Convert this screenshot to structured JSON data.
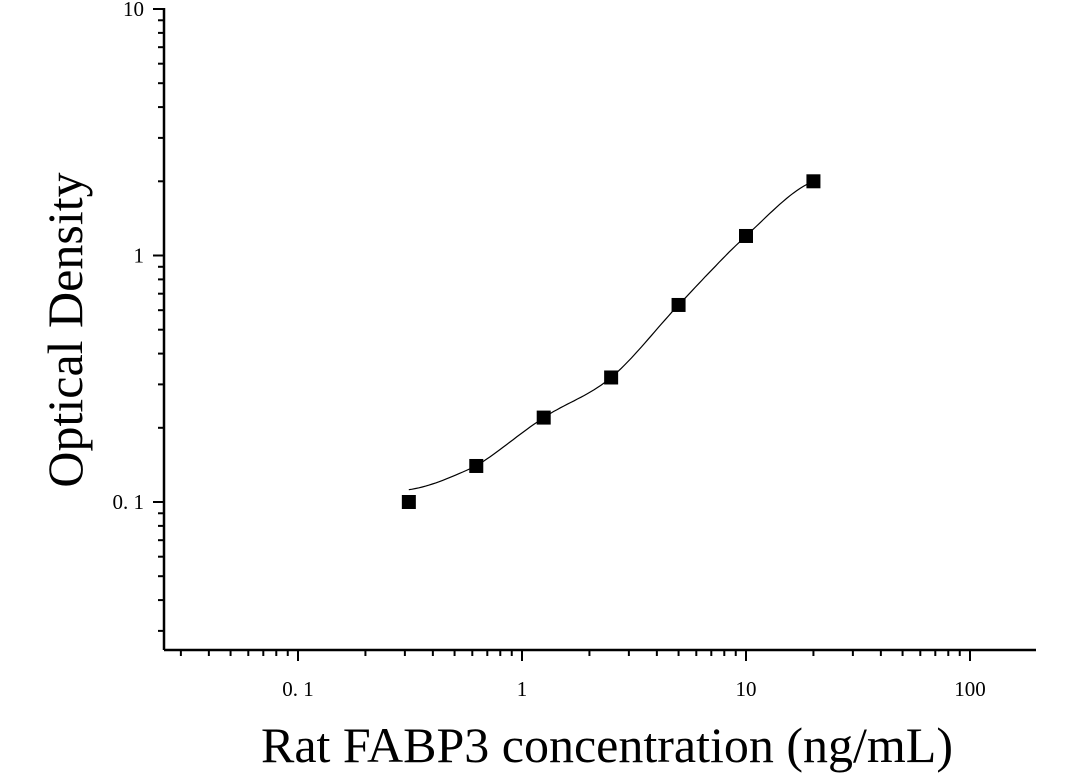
{
  "chart_data": {
    "type": "scatter",
    "title": "",
    "xlabel": "Rat FABP3 concentration (ng/mL)",
    "ylabel": "Optical Density",
    "xscale": "log",
    "yscale": "log",
    "xlim": [
      0.025,
      200
    ],
    "ylim": [
      0.025,
      10
    ],
    "x_tick_labels": [
      {
        "value": 0.1,
        "label": "0. 1"
      },
      {
        "value": 1,
        "label": "1"
      },
      {
        "value": 10,
        "label": "10"
      },
      {
        "value": 100,
        "label": "100"
      }
    ],
    "y_tick_labels": [
      {
        "value": 0.1,
        "label": "0. 1"
      },
      {
        "value": 1,
        "label": "1"
      },
      {
        "value": 10,
        "label": "10"
      }
    ],
    "grid": false,
    "legend": "none",
    "series": [
      {
        "marker": "square",
        "color": "#000000",
        "x": [
          0.3125,
          0.625,
          1.25,
          2.5,
          5,
          10,
          20
        ],
        "y": [
          0.1,
          0.14,
          0.22,
          0.32,
          0.63,
          1.2,
          2.0
        ]
      }
    ],
    "fit_curve": {
      "type": "4PL",
      "x_range": [
        0.3125,
        20
      ],
      "color": "#000000"
    }
  }
}
